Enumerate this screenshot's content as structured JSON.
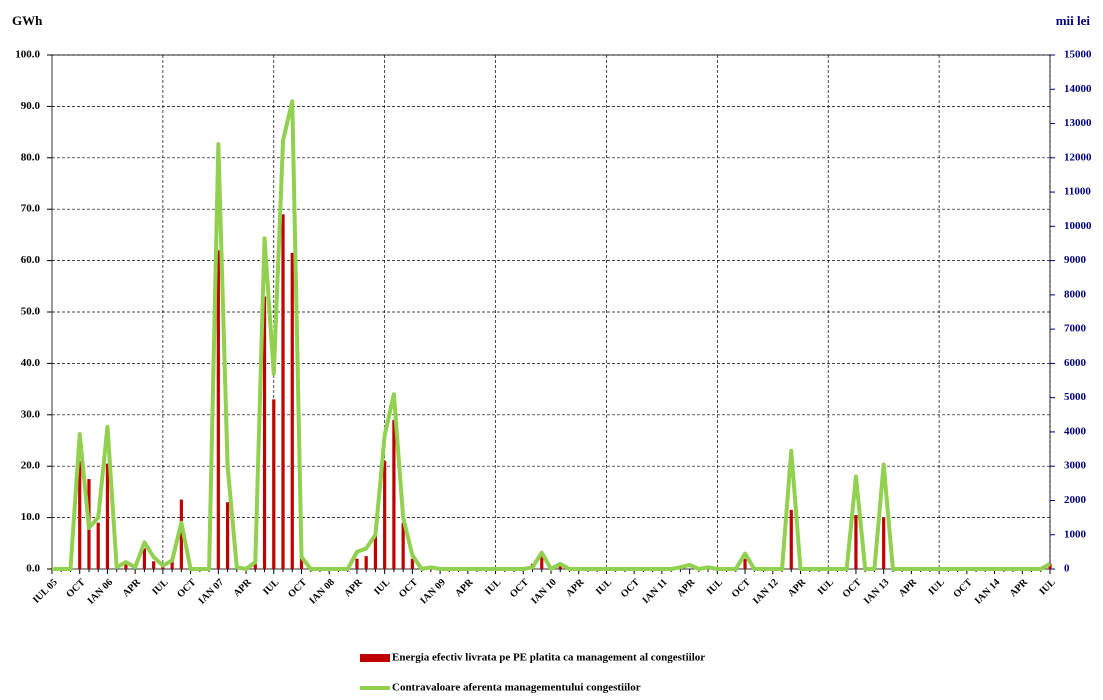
{
  "chart_data": {
    "type": "bar",
    "y_label": "GWh",
    "y2_label": "mii lei",
    "categories": [
      "IUL 05",
      null,
      null,
      "OCT",
      null,
      null,
      "IAN 06",
      null,
      null,
      "APR",
      null,
      null,
      "IUL",
      null,
      null,
      "OCT",
      null,
      null,
      "IAN 07",
      null,
      null,
      "APR",
      null,
      null,
      "IUL",
      null,
      null,
      "OCT",
      null,
      null,
      "IAN 08",
      null,
      null,
      "APR",
      null,
      null,
      "IUL",
      null,
      null,
      "OCT",
      null,
      null,
      "IAN 09",
      null,
      null,
      "APR",
      null,
      null,
      "IUL",
      null,
      null,
      "OCT",
      null,
      null,
      "IAN 10",
      null,
      null,
      "APR",
      null,
      null,
      "IUL",
      null,
      null,
      "OCT",
      null,
      null,
      "IAN 11",
      null,
      null,
      "APR",
      null,
      null,
      "IUL",
      null,
      null,
      "OCT",
      null,
      null,
      "IAN 12",
      null,
      null,
      "APR",
      null,
      null,
      "IUL",
      null,
      null,
      "OCT",
      null,
      null,
      "IAN 13",
      null,
      null,
      "APR",
      null,
      null,
      "IUL",
      null,
      null,
      "OCT",
      null,
      null,
      "IAN 14",
      null,
      null,
      "APR",
      null,
      null,
      "IUL"
    ],
    "series": [
      {
        "name": "Energia efectiv livrata pe PE platita ca management al congestiilor",
        "type": "bar",
        "color": "#c00000",
        "values": [
          0,
          0,
          0,
          21,
          17.5,
          9,
          20.5,
          0.5,
          1,
          0,
          4,
          1.5,
          0.5,
          1.5,
          13.5,
          0,
          0,
          0,
          62,
          13,
          0,
          0,
          1,
          53,
          33,
          69,
          61.5,
          3,
          0,
          0,
          0,
          0,
          0,
          2,
          2.5,
          6.5,
          21,
          29,
          9,
          2,
          0,
          0,
          0,
          0,
          0,
          0,
          0,
          0,
          0,
          0,
          0,
          0,
          1,
          2.5,
          0,
          0.5,
          0,
          0,
          0,
          0,
          0,
          0,
          0,
          0,
          0,
          0,
          0,
          0,
          0,
          0,
          0,
          0,
          0,
          0,
          0,
          2,
          0,
          0,
          0,
          0,
          11.5,
          0,
          0,
          0,
          0,
          0,
          0,
          10.5,
          0,
          0,
          10,
          0,
          0,
          0,
          0,
          0,
          0,
          0,
          0,
          0,
          0,
          0,
          0,
          0,
          0,
          0,
          0,
          0,
          1
        ]
      },
      {
        "name": "Contravaloare aferenta managementului congestiilor",
        "type": "line",
        "axis": "y2",
        "color": "#92d050",
        "values": [
          0,
          0,
          0,
          3940,
          1200,
          1500,
          4150,
          50,
          200,
          50,
          780,
          350,
          100,
          250,
          1350,
          0,
          0,
          0,
          12400,
          3000,
          50,
          0,
          200,
          9650,
          5700,
          12500,
          13650,
          350,
          0,
          0,
          0,
          0,
          0,
          500,
          600,
          1000,
          3900,
          5100,
          1500,
          400,
          0,
          50,
          0,
          0,
          0,
          0,
          0,
          0,
          0,
          0,
          0,
          0,
          50,
          480,
          0,
          150,
          0,
          0,
          0,
          0,
          0,
          0,
          0,
          0,
          0,
          0,
          0,
          0,
          50,
          120,
          0,
          50,
          0,
          0,
          0,
          450,
          0,
          0,
          0,
          0,
          3450,
          0,
          0,
          0,
          0,
          0,
          0,
          2700,
          0,
          0,
          3050,
          0,
          0,
          0,
          0,
          0,
          0,
          0,
          0,
          0,
          0,
          0,
          0,
          0,
          0,
          0,
          0,
          0,
          150
        ]
      }
    ],
    "ylim": [
      0,
      100
    ],
    "yticks": [
      {
        "value": 0,
        "label": "0.0"
      },
      {
        "value": 10,
        "label": "10.0"
      },
      {
        "value": 20,
        "label": "20.0"
      },
      {
        "value": 30,
        "label": "30.0"
      },
      {
        "value": 40,
        "label": "40.0"
      },
      {
        "value": 50,
        "label": "50.0"
      },
      {
        "value": 60,
        "label": "60.0"
      },
      {
        "value": 70,
        "label": "70.0"
      },
      {
        "value": 80,
        "label": "80.0"
      },
      {
        "value": 90,
        "label": "90.0"
      },
      {
        "value": 100,
        "label": "100.0"
      }
    ],
    "y2lim": [
      0,
      15000
    ],
    "y2ticks": [
      0,
      1000,
      2000,
      3000,
      4000,
      5000,
      6000,
      7000,
      8000,
      9000,
      10000,
      11000,
      12000,
      13000,
      14000,
      15000
    ],
    "grid": true,
    "legend": "bottom"
  }
}
